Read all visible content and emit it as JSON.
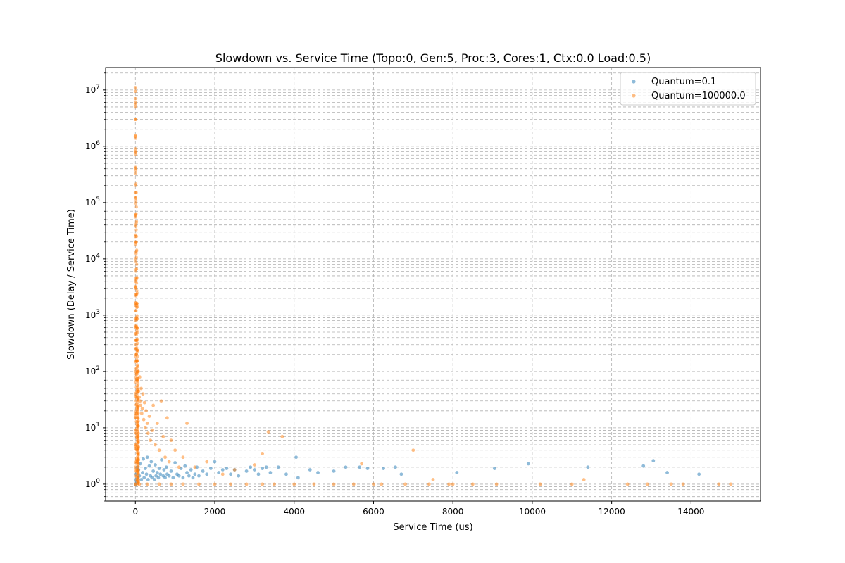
{
  "chart_data": {
    "type": "scatter",
    "title": "Slowdown vs. Service Time (Topo:0, Gen:5, Proc:3, Cores:1, Ctx:0.0 Load:0.5)",
    "xlabel": "Service Time (us)",
    "ylabel": "Slowdown (Delay / Service Time)",
    "xlim": [
      -750,
      15750
    ],
    "ylim": [
      0.5,
      25000000
    ],
    "yscale": "log",
    "grid": true,
    "legend_position": "top-right",
    "x_ticks": [
      0,
      2000,
      4000,
      6000,
      8000,
      10000,
      12000,
      14000
    ],
    "x_tick_labels": [
      "0",
      "2000",
      "4000",
      "6000",
      "8000",
      "10000",
      "12000",
      "14000"
    ],
    "y_ticks": [
      1,
      10,
      100,
      1000,
      10000,
      100000,
      1000000,
      10000000
    ],
    "y_tick_labels": [
      {
        "base": "10",
        "exp": "0"
      },
      {
        "base": "10",
        "exp": "1"
      },
      {
        "base": "10",
        "exp": "2"
      },
      {
        "base": "10",
        "exp": "3"
      },
      {
        "base": "10",
        "exp": "4"
      },
      {
        "base": "10",
        "exp": "5"
      },
      {
        "base": "10",
        "exp": "6"
      },
      {
        "base": "10",
        "exp": "7"
      }
    ],
    "series": [
      {
        "name": "Quantum=0.1",
        "color": "#1f77b4",
        "points": [
          [
            5,
            1.0
          ],
          [
            12,
            1.2
          ],
          [
            20,
            1.5
          ],
          [
            30,
            1.1
          ],
          [
            45,
            2.0
          ],
          [
            60,
            1.3
          ],
          [
            80,
            1.8
          ],
          [
            100,
            1.4
          ],
          [
            120,
            2.3
          ],
          [
            150,
            1.2
          ],
          [
            180,
            1.6
          ],
          [
            200,
            2.8
          ],
          [
            220,
            1.3
          ],
          [
            250,
            1.9
          ],
          [
            280,
            1.5
          ],
          [
            300,
            3.0
          ],
          [
            320,
            1.2
          ],
          [
            350,
            2.1
          ],
          [
            380,
            1.4
          ],
          [
            400,
            2.5
          ],
          [
            420,
            1.3
          ],
          [
            450,
            1.7
          ],
          [
            480,
            1.2
          ],
          [
            500,
            2.2
          ],
          [
            520,
            1.4
          ],
          [
            550,
            1.6
          ],
          [
            580,
            1.3
          ],
          [
            600,
            1.9
          ],
          [
            630,
            1.5
          ],
          [
            660,
            2.7
          ],
          [
            700,
            1.4
          ],
          [
            720,
            1.8
          ],
          [
            750,
            1.3
          ],
          [
            780,
            2.0
          ],
          [
            800,
            1.5
          ],
          [
            850,
            1.4
          ],
          [
            900,
            1.7
          ],
          [
            950,
            1.3
          ],
          [
            1000,
            2.4
          ],
          [
            1050,
            1.5
          ],
          [
            1100,
            1.4
          ],
          [
            1150,
            1.9
          ],
          [
            1200,
            1.3
          ],
          [
            1250,
            2.1
          ],
          [
            1300,
            1.6
          ],
          [
            1350,
            1.4
          ],
          [
            1400,
            1.8
          ],
          [
            1450,
            1.3
          ],
          [
            1500,
            1.5
          ],
          [
            1550,
            2.0
          ],
          [
            1600,
            1.4
          ],
          [
            1700,
            1.7
          ],
          [
            1800,
            1.5
          ],
          [
            1900,
            1.9
          ],
          [
            2000,
            2.5
          ],
          [
            2100,
            1.6
          ],
          [
            2200,
            1.8
          ],
          [
            2300,
            1.9
          ],
          [
            2400,
            1.5
          ],
          [
            2500,
            1.8
          ],
          [
            2600,
            1.4
          ],
          [
            2800,
            1.7
          ],
          [
            2900,
            2.0
          ],
          [
            3000,
            1.8
          ],
          [
            3100,
            1.5
          ],
          [
            3200,
            1.9
          ],
          [
            3300,
            2.0
          ],
          [
            3400,
            1.6
          ],
          [
            3600,
            2.0
          ],
          [
            3800,
            1.5
          ],
          [
            4050,
            3.0
          ],
          [
            4100,
            1.3
          ],
          [
            4400,
            1.8
          ],
          [
            4600,
            1.6
          ],
          [
            5000,
            1.7
          ],
          [
            5300,
            2.0
          ],
          [
            5650,
            2.0
          ],
          [
            5850,
            1.9
          ],
          [
            6250,
            1.9
          ],
          [
            6550,
            2.0
          ],
          [
            6700,
            1.5
          ],
          [
            8100,
            1.6
          ],
          [
            9050,
            1.9
          ],
          [
            9900,
            2.3
          ],
          [
            11400,
            2.0
          ],
          [
            12800,
            2.1
          ],
          [
            13050,
            2.6
          ],
          [
            13400,
            1.6
          ],
          [
            14200,
            1.5
          ]
        ]
      },
      {
        "name": "Quantum=100000.0",
        "color": "#ff7f0e",
        "points": [
          [
            0,
            11000000
          ],
          [
            0,
            9500000
          ],
          [
            0,
            7000000
          ],
          [
            0,
            5000000
          ],
          [
            0,
            3000000
          ],
          [
            0,
            1500000
          ],
          [
            0,
            800000
          ],
          [
            0,
            400000
          ],
          [
            0,
            150000
          ],
          [
            0,
            60000
          ],
          [
            0,
            25000
          ],
          [
            0,
            10000
          ],
          [
            0,
            4000
          ],
          [
            0,
            1500
          ],
          [
            0,
            600
          ],
          [
            0,
            250
          ],
          [
            0,
            100
          ],
          [
            0,
            40
          ],
          [
            0,
            15
          ],
          [
            0,
            5
          ],
          [
            0,
            2
          ],
          [
            0,
            1
          ],
          [
            2,
            6000000
          ],
          [
            4,
            900000
          ],
          [
            6,
            120000
          ],
          [
            8,
            20000
          ],
          [
            10,
            3000
          ],
          [
            14,
            800
          ],
          [
            18,
            300
          ],
          [
            22,
            450
          ],
          [
            28,
            200
          ],
          [
            35,
            150
          ],
          [
            40,
            90
          ],
          [
            50,
            130
          ],
          [
            55,
            70
          ],
          [
            65,
            60
          ],
          [
            75,
            100
          ],
          [
            85,
            45
          ],
          [
            95,
            35
          ],
          [
            110,
            80
          ],
          [
            120,
            30
          ],
          [
            130,
            25
          ],
          [
            145,
            50
          ],
          [
            160,
            18
          ],
          [
            175,
            22
          ],
          [
            190,
            40
          ],
          [
            210,
            14
          ],
          [
            230,
            28
          ],
          [
            250,
            10
          ],
          [
            270,
            20
          ],
          [
            300,
            12
          ],
          [
            320,
            8
          ],
          [
            350,
            16
          ],
          [
            380,
            6
          ],
          [
            420,
            9
          ],
          [
            450,
            25
          ],
          [
            500,
            5
          ],
          [
            550,
            12
          ],
          [
            600,
            4
          ],
          [
            650,
            30
          ],
          [
            700,
            7
          ],
          [
            750,
            3
          ],
          [
            800,
            15
          ],
          [
            850,
            2.5
          ],
          [
            900,
            6
          ],
          [
            1000,
            4
          ],
          [
            1100,
            2
          ],
          [
            1200,
            3
          ],
          [
            1300,
            12
          ],
          [
            1500,
            2
          ],
          [
            1800,
            2.5
          ],
          [
            2200,
            1.5
          ],
          [
            2500,
            1.8
          ],
          [
            3000,
            2.2
          ],
          [
            3200,
            3.5
          ],
          [
            3350,
            8.5
          ],
          [
            3700,
            7
          ],
          [
            5700,
            2.3
          ],
          [
            7000,
            4
          ],
          [
            7500,
            1.2
          ],
          [
            8000,
            1.0
          ],
          [
            11300,
            1.2
          ],
          [
            100,
            1.0
          ],
          [
            300,
            1.0
          ],
          [
            600,
            1.0
          ],
          [
            900,
            1.0
          ],
          [
            1200,
            1.0
          ],
          [
            1600,
            1.0
          ],
          [
            2000,
            1.0
          ],
          [
            2400,
            1.0
          ],
          [
            2800,
            1.0
          ],
          [
            3200,
            1.0
          ],
          [
            3500,
            1.0
          ],
          [
            4000,
            1.0
          ],
          [
            4500,
            1.0
          ],
          [
            5000,
            1.0
          ],
          [
            5500,
            1.0
          ],
          [
            6000,
            1.0
          ],
          [
            6200,
            1.0
          ],
          [
            6800,
            1.0
          ],
          [
            7400,
            1.0
          ],
          [
            7900,
            1.0
          ],
          [
            8500,
            1.0
          ],
          [
            9100,
            1.0
          ],
          [
            10200,
            1.0
          ],
          [
            11000,
            1.0
          ],
          [
            12400,
            1.0
          ],
          [
            12900,
            1.0
          ],
          [
            13500,
            1.0
          ],
          [
            13800,
            1.0
          ],
          [
            14700,
            1.0
          ],
          [
            15000,
            1.0
          ]
        ]
      }
    ]
  }
}
